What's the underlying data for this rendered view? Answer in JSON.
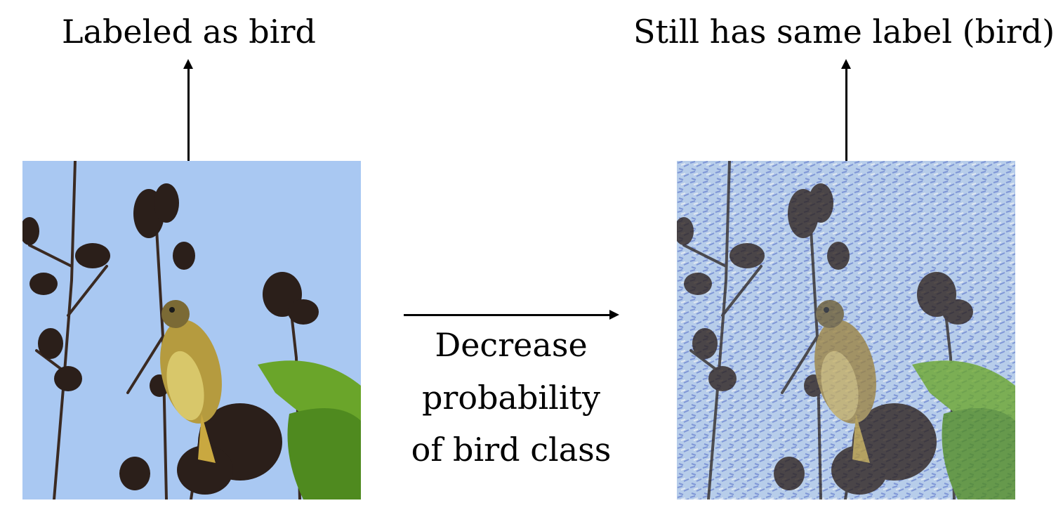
{
  "left": {
    "label": "Labeled as bird"
  },
  "right": {
    "label": "Still has same label (bird)"
  },
  "middle": {
    "lines": [
      "Decrease",
      "probability",
      "of bird class"
    ]
  },
  "colors": {
    "sky": "#a9c8f2",
    "noisy_sky": "#b7cdea",
    "branch": "#2b1f1a",
    "leaf": "#6aa52a",
    "bird_body": "#c7b24a"
  },
  "icons": {
    "arrow_up": "arrow-up-icon",
    "arrow_right": "arrow-right-icon"
  }
}
